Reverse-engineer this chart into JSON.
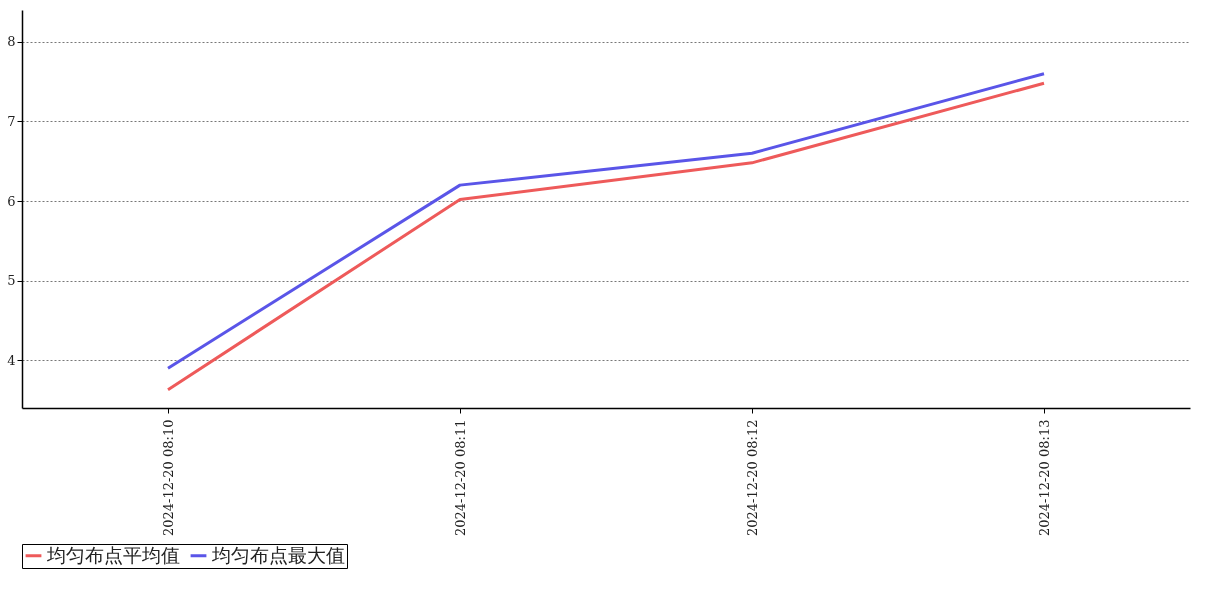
{
  "chart_data": {
    "type": "line",
    "categories": [
      "2024-12-20 08:10",
      "2024-12-20 08:11",
      "2024-12-20 08:12",
      "2024-12-20 08:13"
    ],
    "series": [
      {
        "name": "均匀布点平均值",
        "color": "#ee5a5a",
        "values": [
          3.63,
          6.02,
          6.48,
          7.48
        ]
      },
      {
        "name": "均匀布点最大值",
        "color": "#5a55e8",
        "values": [
          3.9,
          6.2,
          6.6,
          7.6
        ]
      }
    ],
    "ylim": [
      3.4,
      8.4
    ],
    "yticks": [
      4,
      5,
      6,
      7,
      8
    ],
    "grid": "y",
    "legend": "bottom",
    "marker": "none",
    "line_style": "solid"
  }
}
